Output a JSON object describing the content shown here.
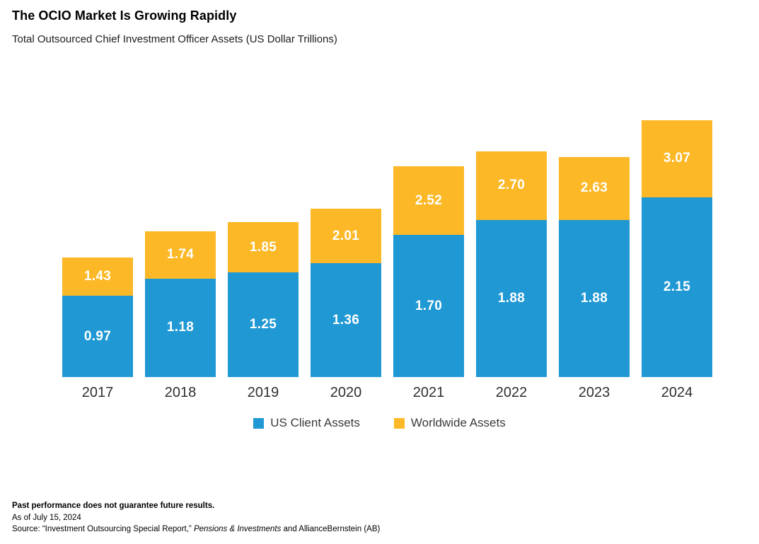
{
  "header": {
    "title": "The OCIO Market Is Growing Rapidly",
    "subtitle": "Total Outsourced Chief Investment Officer Assets (US Dollar Trillions)"
  },
  "chart_data": {
    "type": "bar",
    "stacked": true,
    "title": "The OCIO Market Is Growing Rapidly",
    "xlabel": "",
    "ylabel": "US Dollar Trillions",
    "categories": [
      "2017",
      "2018",
      "2019",
      "2020",
      "2021",
      "2022",
      "2023",
      "2024"
    ],
    "series": [
      {
        "name": "US Client Assets",
        "color": "#2098D4",
        "values": [
          0.97,
          1.18,
          1.25,
          1.36,
          1.7,
          1.88,
          1.88,
          2.15
        ]
      },
      {
        "name": "Worldwide Assets",
        "color": "#FCB826",
        "values": [
          1.43,
          1.74,
          1.85,
          2.01,
          2.52,
          2.7,
          2.63,
          3.07
        ]
      }
    ],
    "stack_note": "Worldwide values are bar totals; yellow segment height = worldwide minus US",
    "value_labels": true,
    "grid": false,
    "axes_visible": false,
    "ylim": [
      0,
      3.07
    ],
    "legend_position": "bottom"
  },
  "legend": {
    "items": [
      {
        "label": "US Client Assets",
        "color": "#2098D4"
      },
      {
        "label": "Worldwide Assets",
        "color": "#FCB826"
      }
    ]
  },
  "footer": {
    "disclaimer": "Past performance does not guarantee future results.",
    "as_of": "As of July 15, 2024",
    "source_prefix": "Source: “Investment Outsourcing Special Report,” ",
    "source_italic": "Pensions & Investments",
    "source_suffix": " and AllianceBernstein (AB)"
  }
}
